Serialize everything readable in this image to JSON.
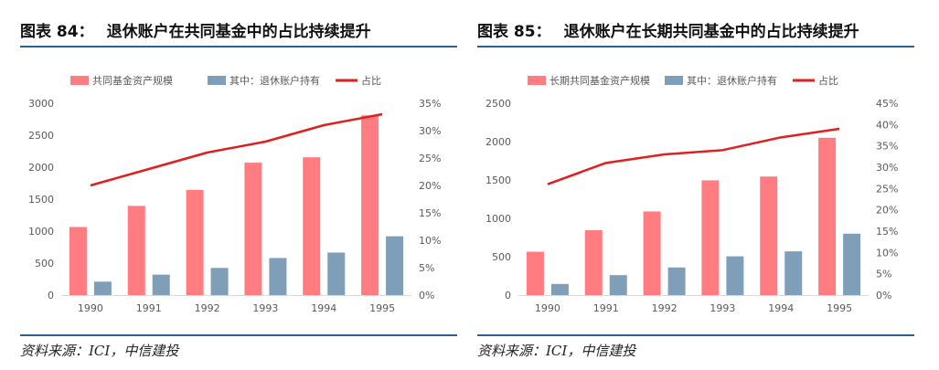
{
  "charts": [
    {
      "fig_label": "图表 84：",
      "title": "退休账户在共同基金中的占比持续提升",
      "source": "资料来源：ICI，中信建投",
      "legend": [
        "共同基金资产规模",
        "其中：退休账户持有",
        "占比"
      ]
    },
    {
      "fig_label": "图表 85：",
      "title": "退休账户在长期共同基金中的占比持续提升",
      "source": "资料来源：ICI，中信建投",
      "legend": [
        "长期共同基金资产规模",
        "其中：退休账户持有",
        "占比"
      ]
    }
  ],
  "colors": {
    "bar1": "#ff7c80",
    "bar2": "#7f9fb9",
    "line": "#e01f1f",
    "rule": "#2e5f8f"
  },
  "chart_data": [
    {
      "type": "bar",
      "title": "退休账户在共同基金中的占比持续提升",
      "categories": [
        "1990",
        "1991",
        "1992",
        "1993",
        "1994",
        "1995"
      ],
      "series": [
        {
          "name": "共同基金资产规模",
          "kind": "bar",
          "axis": "left",
          "values": [
            1065,
            1395,
            1645,
            2070,
            2155,
            2810
          ]
        },
        {
          "name": "其中：退休账户持有",
          "kind": "bar",
          "axis": "left",
          "values": [
            210,
            320,
            425,
            580,
            665,
            920
          ]
        },
        {
          "name": "占比",
          "kind": "line",
          "axis": "right",
          "values": [
            20,
            23,
            26,
            28,
            31,
            33
          ]
        }
      ],
      "left_axis": {
        "min": 0,
        "max": 3000,
        "step": 500,
        "ticks": [
          "0",
          "500",
          "1000",
          "1500",
          "2000",
          "2500",
          "3000"
        ]
      },
      "right_axis": {
        "min": 0,
        "max": 35,
        "step": 5,
        "ticks": [
          "0%",
          "5%",
          "10%",
          "15%",
          "20%",
          "25%",
          "30%",
          "35%"
        ]
      },
      "legend_position": "top"
    },
    {
      "type": "bar",
      "title": "退休账户在长期共同基金中的占比持续提升",
      "categories": [
        "1990",
        "1991",
        "1992",
        "1993",
        "1994",
        "1995"
      ],
      "series": [
        {
          "name": "长期共同基金资产规模",
          "kind": "bar",
          "axis": "left",
          "values": [
            565,
            845,
            1090,
            1495,
            1545,
            2050
          ]
        },
        {
          "name": "其中：退休账户持有",
          "kind": "bar",
          "axis": "left",
          "values": [
            145,
            260,
            360,
            505,
            570,
            800
          ]
        },
        {
          "name": "占比",
          "kind": "line",
          "axis": "right",
          "values": [
            26,
            31,
            33,
            34,
            37,
            39
          ]
        }
      ],
      "left_axis": {
        "min": 0,
        "max": 2500,
        "step": 500,
        "ticks": [
          "0",
          "500",
          "1000",
          "1500",
          "2000",
          "2500"
        ]
      },
      "right_axis": {
        "min": 0,
        "max": 45,
        "step": 5,
        "ticks": [
          "0%",
          "5%",
          "10%",
          "15%",
          "20%",
          "25%",
          "30%",
          "35%",
          "40%",
          "45%"
        ]
      },
      "legend_position": "top"
    }
  ]
}
